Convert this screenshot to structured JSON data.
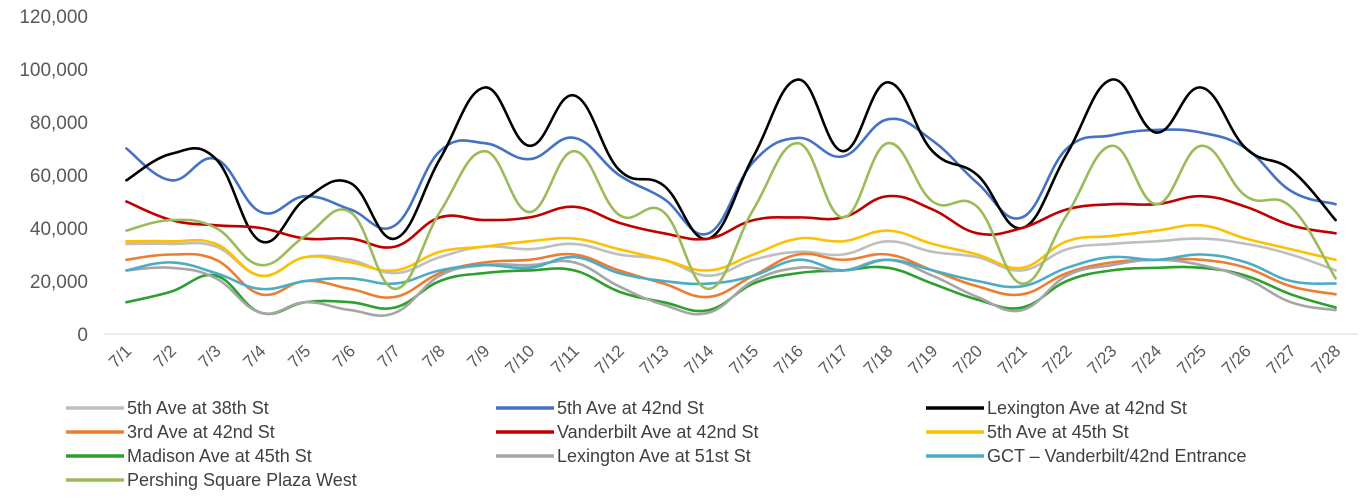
{
  "chart_data": {
    "type": "line",
    "smooth": true,
    "title": "",
    "xlabel": "",
    "ylabel": "",
    "ylim": [
      0,
      120000
    ],
    "yticks": [
      0,
      20000,
      40000,
      60000,
      80000,
      100000,
      120000
    ],
    "ytick_labels": [
      "0",
      "20,000",
      "40,000",
      "60,000",
      "80,000",
      "100,000",
      "120,000"
    ],
    "grid": false,
    "legend_position": "bottom",
    "categories": [
      "7/1",
      "7/2",
      "7/3",
      "7/4",
      "7/5",
      "7/6",
      "7/7",
      "7/8",
      "7/9",
      "7/10",
      "7/11",
      "7/12",
      "7/13",
      "7/14",
      "7/15",
      "7/16",
      "7/17",
      "7/18",
      "7/19",
      "7/20",
      "7/21",
      "7/22",
      "7/23",
      "7/24",
      "7/25",
      "7/26",
      "7/27",
      "7/28"
    ],
    "series": [
      {
        "name": "5th Ave at 38th St",
        "color": "#bfbfbf",
        "values": [
          34000,
          34000,
          33000,
          22000,
          29000,
          28000,
          23000,
          29000,
          33000,
          32000,
          34000,
          30000,
          28000,
          22000,
          28000,
          31000,
          30000,
          35000,
          31000,
          29000,
          24000,
          32000,
          34000,
          35000,
          36000,
          34000,
          30000,
          24000
        ]
      },
      {
        "name": "5th Ave at 42nd St",
        "color": "#4472c4",
        "values": [
          70000,
          58000,
          66000,
          46000,
          52000,
          47000,
          41000,
          69000,
          72000,
          66000,
          74000,
          60000,
          51000,
          38000,
          65000,
          74000,
          67000,
          81000,
          73000,
          57000,
          44000,
          70000,
          75000,
          77000,
          76000,
          70000,
          54000,
          49000
        ]
      },
      {
        "name": "Lexington Ave at 42nd St",
        "color": "#000000",
        "values": [
          58000,
          68000,
          66000,
          35000,
          51000,
          57000,
          36000,
          66000,
          93000,
          71000,
          90000,
          62000,
          56000,
          36000,
          67000,
          96000,
          69000,
          95000,
          69000,
          60000,
          40000,
          68000,
          96000,
          76000,
          93000,
          70000,
          62000,
          43000
        ]
      },
      {
        "name": "3rd Ave at 42nd St",
        "color": "#ed7d31",
        "values": [
          28000,
          30000,
          28000,
          15000,
          20000,
          17000,
          14000,
          23000,
          27000,
          28000,
          30000,
          24000,
          19000,
          14000,
          22000,
          30000,
          28000,
          30000,
          24000,
          18000,
          15000,
          23000,
          27000,
          28000,
          28000,
          25000,
          18000,
          15000
        ]
      },
      {
        "name": "Vanderbilt Ave at 42nd St",
        "color": "#c00000",
        "values": [
          50000,
          43000,
          41000,
          40000,
          36000,
          36000,
          33000,
          44000,
          43000,
          44000,
          48000,
          42000,
          38000,
          36000,
          43000,
          44000,
          44000,
          52000,
          47000,
          38000,
          40000,
          47000,
          49000,
          49000,
          52000,
          48000,
          41000,
          38000
        ]
      },
      {
        "name": "5th Ave at 45th St",
        "color": "#ffc000",
        "values": [
          35000,
          35000,
          34000,
          22000,
          29000,
          27000,
          24000,
          31000,
          33000,
          35000,
          36000,
          32000,
          28000,
          24000,
          30000,
          36000,
          35000,
          39000,
          34000,
          30000,
          25000,
          35000,
          37000,
          39000,
          41000,
          36000,
          32000,
          28000
        ]
      },
      {
        "name": "Madison Ave at 45th St",
        "color": "#2ca02c",
        "values": [
          12000,
          16000,
          22000,
          8000,
          12000,
          12000,
          10000,
          20000,
          23000,
          24000,
          24000,
          16000,
          12000,
          9000,
          19000,
          23000,
          24000,
          25000,
          19000,
          13000,
          10000,
          20000,
          24000,
          25000,
          25000,
          22000,
          15000,
          10000
        ]
      },
      {
        "name": "Lexington Ave at 51st St",
        "color": "#a6a6a6",
        "values": [
          24000,
          25000,
          21000,
          8000,
          12000,
          9000,
          8000,
          22000,
          26000,
          26000,
          27000,
          18000,
          11000,
          8000,
          20000,
          25000,
          24000,
          28000,
          22000,
          14000,
          9000,
          22000,
          26000,
          28000,
          26000,
          21000,
          12000,
          9000
        ]
      },
      {
        "name": "GCT – Vanderbilt/42nd Entrance",
        "color": "#4bacc6",
        "values": [
          24000,
          27000,
          23000,
          17000,
          20000,
          21000,
          19000,
          24000,
          26000,
          25000,
          29000,
          23000,
          20000,
          19000,
          22000,
          28000,
          24000,
          28000,
          24000,
          20000,
          18000,
          25000,
          29000,
          28000,
          30000,
          27000,
          20000,
          19000
        ]
      },
      {
        "name": "Pershing Square Plaza West",
        "color": "#9bbb59",
        "values": [
          39000,
          43000,
          40000,
          26000,
          37000,
          46000,
          17000,
          46000,
          69000,
          46000,
          69000,
          45000,
          46000,
          17000,
          47000,
          72000,
          44000,
          72000,
          50000,
          48000,
          19000,
          45000,
          71000,
          49000,
          71000,
          52000,
          48000,
          21000
        ]
      }
    ]
  }
}
